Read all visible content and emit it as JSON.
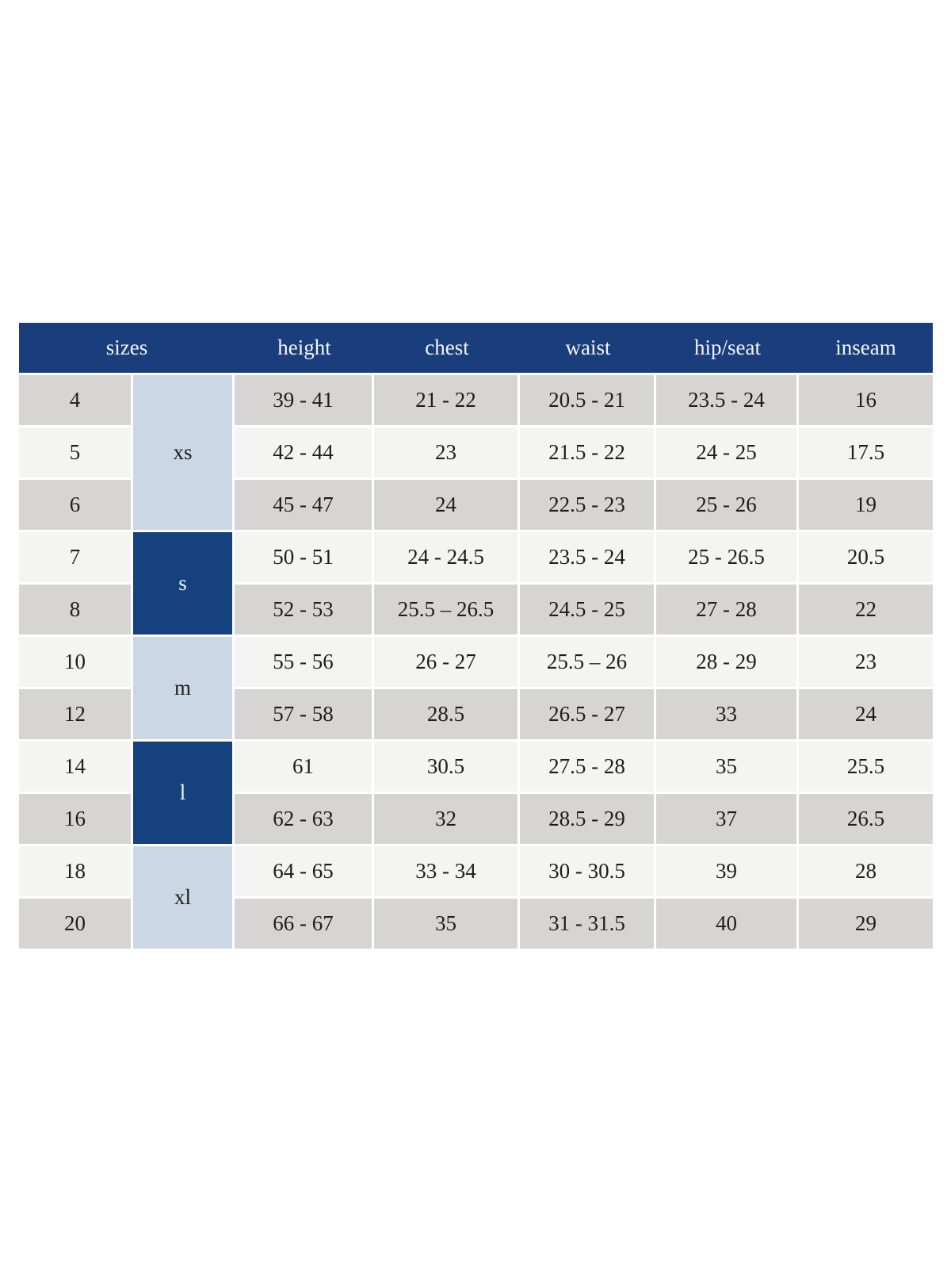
{
  "colors": {
    "header_background": "#1a3e7c",
    "header_text": "#f3f5f8",
    "row_gray": "#d6d5d3",
    "row_light": "#f4f4f2",
    "group_light_blue": "#ccd7e5",
    "group_dark_blue": "#15417f",
    "cell_text": "#1d1d1d",
    "grid_border": "#ffffff",
    "page_background": "#ffffff"
  },
  "table": {
    "header": {
      "sizes": "sizes",
      "height": "height",
      "chest": "chest",
      "waist": "waist",
      "hip_seat": "hip/seat",
      "inseam": "inseam"
    },
    "groups": [
      {
        "label": "xs",
        "style": "light",
        "rows": [
          {
            "size": "4",
            "height": "39 - 41",
            "chest": "21 - 22",
            "waist": "20.5 - 21",
            "hip_seat": "23.5 - 24",
            "inseam": "16"
          },
          {
            "size": "5",
            "height": "42 - 44",
            "chest": "23",
            "waist": "21.5 - 22",
            "hip_seat": "24 - 25",
            "inseam": "17.5"
          },
          {
            "size": "6",
            "height": "45 - 47",
            "chest": "24",
            "waist": "22.5 - 23",
            "hip_seat": "25 - 26",
            "inseam": "19"
          }
        ]
      },
      {
        "label": "s",
        "style": "dark",
        "rows": [
          {
            "size": "7",
            "height": "50 - 51",
            "chest": "24 - 24.5",
            "waist": "23.5 - 24",
            "hip_seat": "25 - 26.5",
            "inseam": "20.5"
          },
          {
            "size": "8",
            "height": "52 - 53",
            "chest": "25.5 – 26.5",
            "waist": "24.5 - 25",
            "hip_seat": "27 - 28",
            "inseam": "22"
          }
        ]
      },
      {
        "label": "m",
        "style": "light",
        "rows": [
          {
            "size": "10",
            "height": "55 - 56",
            "chest": "26 - 27",
            "waist": "25.5 – 26",
            "hip_seat": "28 - 29",
            "inseam": "23"
          },
          {
            "size": "12",
            "height": "57 - 58",
            "chest": "28.5",
            "waist": "26.5 - 27",
            "hip_seat": "33",
            "inseam": "24"
          }
        ]
      },
      {
        "label": "l",
        "style": "dark",
        "rows": [
          {
            "size": "14",
            "height": "61",
            "chest": "30.5",
            "waist": "27.5 - 28",
            "hip_seat": "35",
            "inseam": "25.5"
          },
          {
            "size": "16",
            "height": "62 - 63",
            "chest": "32",
            "waist": "28.5 - 29",
            "hip_seat": "37",
            "inseam": "26.5"
          }
        ]
      },
      {
        "label": "xl",
        "style": "light",
        "rows": [
          {
            "size": "18",
            "height": "64 - 65",
            "chest": "33 - 34",
            "waist": "30 - 30.5",
            "hip_seat": "39",
            "inseam": "28"
          },
          {
            "size": "20",
            "height": "66 - 67",
            "chest": "35",
            "waist": "31 - 31.5",
            "hip_seat": "40",
            "inseam": "29"
          }
        ]
      }
    ]
  }
}
